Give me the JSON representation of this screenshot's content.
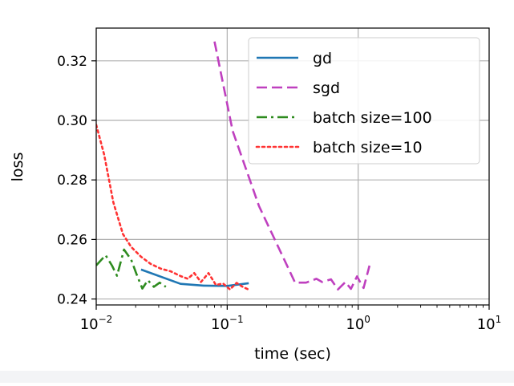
{
  "chart_data": {
    "type": "line",
    "xlabel": "time (sec)",
    "ylabel": "loss",
    "xscale": "log",
    "xlim": [
      0.01,
      10
    ],
    "ylim": [
      0.238,
      0.331
    ],
    "grid": true,
    "legend_position": "top-right",
    "x_ticks": [
      {
        "value": 0.01,
        "base": "10",
        "exp": "−2"
      },
      {
        "value": 0.1,
        "base": "10",
        "exp": "−1"
      },
      {
        "value": 1,
        "base": "10",
        "exp": "0"
      },
      {
        "value": 10,
        "base": "10",
        "exp": "1"
      }
    ],
    "y_ticks": [
      {
        "value": 0.24,
        "label": "0.24"
      },
      {
        "value": 0.26,
        "label": "0.26"
      },
      {
        "value": 0.28,
        "label": "0.28"
      },
      {
        "value": 0.3,
        "label": "0.30"
      },
      {
        "value": 0.32,
        "label": "0.32"
      }
    ],
    "series": [
      {
        "name": "gd",
        "color": "#1f77b4",
        "style": "solid",
        "points": [
          [
            0.022,
            0.2499
          ],
          [
            0.044,
            0.2451
          ],
          [
            0.066,
            0.2445
          ],
          [
            0.1,
            0.2444
          ],
          [
            0.146,
            0.2453
          ]
        ]
      },
      {
        "name": "sgd",
        "color": "#bf40bf",
        "style": "dashed",
        "points": [
          [
            0.08,
            0.3265
          ],
          [
            0.11,
            0.2965
          ],
          [
            0.175,
            0.2712
          ],
          [
            0.33,
            0.2455
          ],
          [
            0.4,
            0.2455
          ],
          [
            0.48,
            0.2468
          ],
          [
            0.53,
            0.2457
          ],
          [
            0.62,
            0.2466
          ],
          [
            0.7,
            0.2432
          ],
          [
            0.8,
            0.2457
          ],
          [
            0.88,
            0.2434
          ],
          [
            0.98,
            0.2476
          ],
          [
            1.1,
            0.2437
          ],
          [
            1.22,
            0.2512
          ]
        ]
      },
      {
        "name": "batch size=100",
        "color": "#2e8b1f",
        "style": "dashdot",
        "points": [
          [
            0.01,
            0.2513
          ],
          [
            0.0118,
            0.2547
          ],
          [
            0.0132,
            0.2512
          ],
          [
            0.0144,
            0.2478
          ],
          [
            0.0163,
            0.2566
          ],
          [
            0.0185,
            0.2532
          ],
          [
            0.0202,
            0.2486
          ],
          [
            0.0225,
            0.2435
          ],
          [
            0.0248,
            0.2463
          ],
          [
            0.0275,
            0.2441
          ],
          [
            0.0305,
            0.2455
          ],
          [
            0.034,
            0.2441
          ]
        ]
      },
      {
        "name": "batch size=10",
        "color": "#ff3333",
        "style": "dotted",
        "points": [
          [
            0.01,
            0.2985
          ],
          [
            0.0115,
            0.2885
          ],
          [
            0.0135,
            0.2725
          ],
          [
            0.016,
            0.2618
          ],
          [
            0.0185,
            0.2575
          ],
          [
            0.022,
            0.2542
          ],
          [
            0.026,
            0.2518
          ],
          [
            0.031,
            0.2502
          ],
          [
            0.037,
            0.2493
          ],
          [
            0.044,
            0.2477
          ],
          [
            0.05,
            0.2468
          ],
          [
            0.056,
            0.2487
          ],
          [
            0.063,
            0.2457
          ],
          [
            0.072,
            0.2487
          ],
          [
            0.082,
            0.2447
          ],
          [
            0.093,
            0.2452
          ],
          [
            0.105,
            0.2432
          ],
          [
            0.118,
            0.2454
          ],
          [
            0.13,
            0.2442
          ],
          [
            0.145,
            0.2432
          ]
        ]
      }
    ]
  }
}
